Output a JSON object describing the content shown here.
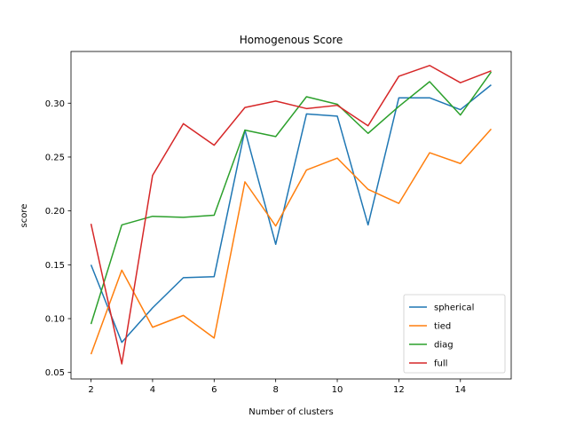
{
  "chart_data": {
    "type": "line",
    "title": "Homogenous Score",
    "xlabel": "Number of clusters",
    "ylabel": "score",
    "x": [
      2,
      3,
      4,
      5,
      6,
      7,
      8,
      9,
      10,
      11,
      12,
      13,
      14,
      15
    ],
    "xlim": [
      1.35,
      15.65
    ],
    "ylim": [
      0.044,
      0.348
    ],
    "xticks": [
      2,
      4,
      6,
      8,
      10,
      12,
      14
    ],
    "yticks": [
      0.05,
      0.1,
      0.15,
      0.2,
      0.25,
      0.3
    ],
    "ytick_labels": [
      "0.05",
      "0.10",
      "0.15",
      "0.20",
      "0.25",
      "0.30"
    ],
    "grid": false,
    "legend_position": "lower-right",
    "series": [
      {
        "name": "spherical",
        "color": "#1f77b4",
        "values": [
          0.15,
          0.078,
          0.11,
          0.138,
          0.139,
          0.275,
          0.169,
          0.29,
          0.288,
          0.187,
          0.305,
          0.305,
          0.294,
          0.317
        ]
      },
      {
        "name": "tied",
        "color": "#ff7f0e",
        "values": [
          0.067,
          0.145,
          0.092,
          0.103,
          0.082,
          0.227,
          0.186,
          0.238,
          0.249,
          0.22,
          0.207,
          0.254,
          0.244,
          0.276
        ]
      },
      {
        "name": "diag",
        "color": "#2ca02c",
        "values": [
          0.095,
          0.187,
          0.195,
          0.194,
          0.196,
          0.275,
          0.269,
          0.306,
          0.299,
          0.272,
          0.297,
          0.32,
          0.289,
          0.329
        ]
      },
      {
        "name": "full",
        "color": "#d62728",
        "values": [
          0.188,
          0.058,
          0.233,
          0.281,
          0.261,
          0.296,
          0.302,
          0.295,
          0.298,
          0.279,
          0.325,
          0.335,
          0.319,
          0.33
        ]
      }
    ]
  }
}
